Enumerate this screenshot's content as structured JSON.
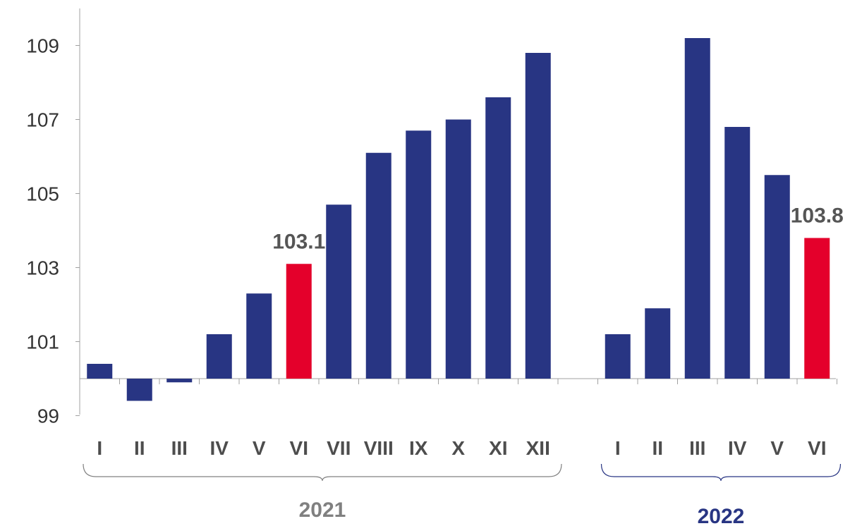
{
  "chart_data": {
    "type": "bar",
    "baseline": 100,
    "ylim": [
      99,
      110
    ],
    "yticks": [
      99,
      101,
      103,
      105,
      107,
      109
    ],
    "grid": false,
    "legend": false,
    "bar_color": "#283583",
    "highlight_color": "#e4002b",
    "groups": [
      {
        "label": "2021",
        "label_color": "#808080",
        "brace_color": "#808080",
        "categories": [
          "I",
          "II",
          "III",
          "IV",
          "V",
          "VI",
          "VII",
          "VIII",
          "IX",
          "X",
          "XI",
          "XII"
        ],
        "values": [
          100.4,
          99.4,
          99.9,
          101.2,
          102.3,
          103.1,
          104.7,
          106.1,
          106.7,
          107.0,
          107.6,
          108.8
        ],
        "highlight_index": 5,
        "highlight_label": "103.1"
      },
      {
        "label": "2022",
        "label_color": "#283583",
        "brace_color": "#283583",
        "categories": [
          "I",
          "II",
          "III",
          "IV",
          "V",
          "VI"
        ],
        "values": [
          101.2,
          101.9,
          109.2,
          106.8,
          105.5,
          103.8
        ],
        "highlight_index": 5,
        "highlight_label": "103.8"
      }
    ]
  }
}
